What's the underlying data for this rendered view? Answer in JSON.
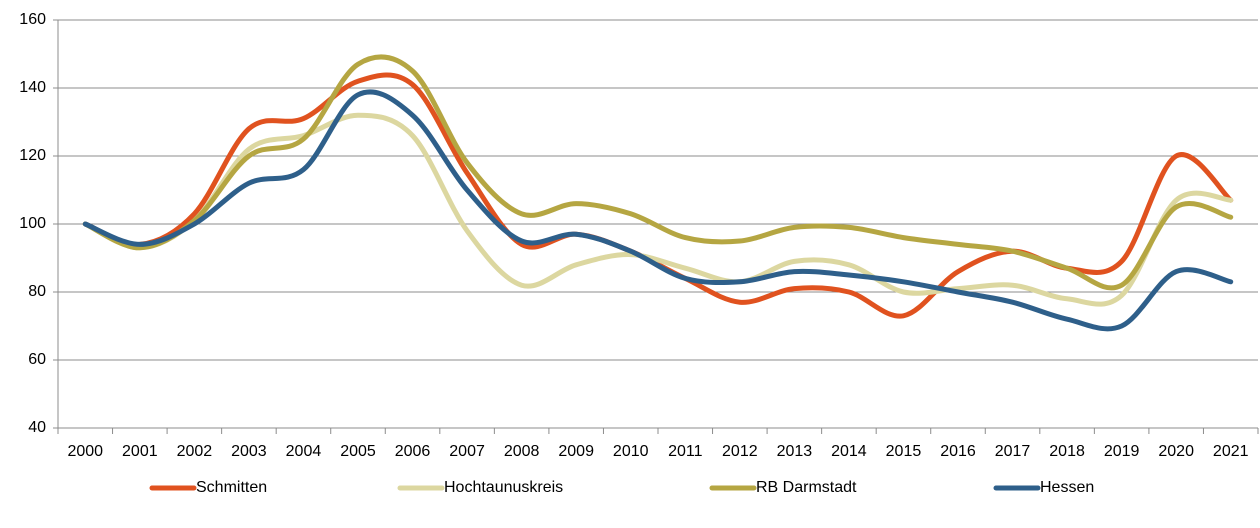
{
  "chart_data": {
    "type": "line",
    "categories": [
      "2000",
      "2001",
      "2002",
      "2003",
      "2004",
      "2005",
      "2006",
      "2007",
      "2008",
      "2009",
      "2010",
      "2011",
      "2012",
      "2013",
      "2014",
      "2015",
      "2016",
      "2017",
      "2018",
      "2019",
      "2020",
      "2021"
    ],
    "series": [
      {
        "name": "Schmitten",
        "color": "#e0521f",
        "values": [
          100,
          94,
          103,
          128,
          131,
          142,
          141,
          115,
          94,
          97,
          92,
          84,
          77,
          81,
          80,
          73,
          86,
          92,
          87,
          89,
          120,
          107
        ]
      },
      {
        "name": "Hochtaunuskreis",
        "color": "#dcd7a0",
        "values": [
          100,
          93,
          101,
          122,
          126,
          132,
          126,
          98,
          82,
          88,
          91,
          87,
          83,
          89,
          88,
          80,
          81,
          82,
          78,
          79,
          107,
          107
        ]
      },
      {
        "name": "RB Darmstadt",
        "color": "#b5a642",
        "values": [
          100,
          93,
          101,
          120,
          125,
          147,
          145,
          118,
          103,
          106,
          103,
          96,
          95,
          99,
          99,
          96,
          94,
          92,
          87,
          82,
          105,
          102
        ]
      },
      {
        "name": "Hessen",
        "color": "#2e5f8a",
        "values": [
          100,
          94,
          100,
          112,
          116,
          138,
          132,
          110,
          95,
          97,
          92,
          84,
          83,
          86,
          85,
          83,
          80,
          77,
          72,
          70,
          86,
          83
        ]
      }
    ],
    "ylim": [
      40,
      160
    ],
    "yticks": [
      40,
      60,
      80,
      100,
      120,
      140,
      160
    ],
    "grid": true,
    "legend": "bottom"
  }
}
